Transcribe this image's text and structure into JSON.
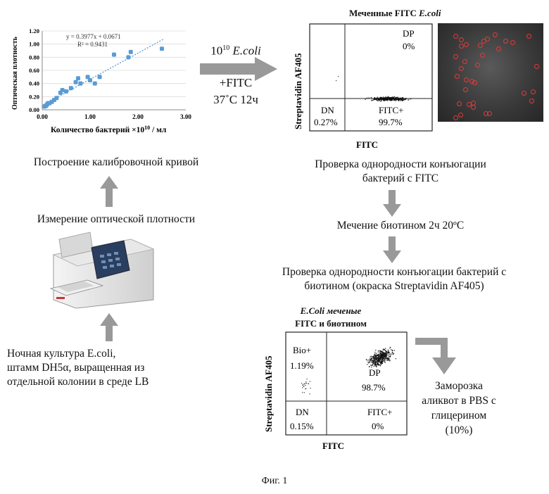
{
  "calibration": {
    "equation": "y = 0.3977x + 0.0671",
    "r2": "R² = 0.9431",
    "ylabel": "Оптическая плотность",
    "xlabel": "Количество бактерий ×10",
    "xlabel_exp": "10",
    "xlabel_unit": " / мл",
    "xticks": [
      "0.00",
      "1.00",
      "2.00",
      "3.00"
    ],
    "yticks": [
      "0.00",
      "0.20",
      "0.40",
      "0.60",
      "0.80",
      "1.00",
      "1.20"
    ]
  },
  "chart_data": {
    "type": "scatter",
    "xlim": [
      0,
      3
    ],
    "ylim": [
      0,
      1.2
    ],
    "trendline": {
      "slope": 0.3977,
      "intercept": 0.0671
    },
    "points": [
      [
        0.05,
        0.05
      ],
      [
        0.08,
        0.06
      ],
      [
        0.1,
        0.08
      ],
      [
        0.12,
        0.1
      ],
      [
        0.15,
        0.1
      ],
      [
        0.2,
        0.12
      ],
      [
        0.25,
        0.15
      ],
      [
        0.3,
        0.18
      ],
      [
        0.38,
        0.26
      ],
      [
        0.42,
        0.3
      ],
      [
        0.5,
        0.28
      ],
      [
        0.6,
        0.33
      ],
      [
        0.7,
        0.42
      ],
      [
        0.75,
        0.48
      ],
      [
        0.8,
        0.4
      ],
      [
        0.95,
        0.5
      ],
      [
        1.0,
        0.45
      ],
      [
        1.1,
        0.4
      ],
      [
        1.2,
        0.5
      ],
      [
        1.5,
        0.84
      ],
      [
        1.8,
        0.8
      ],
      [
        1.85,
        0.88
      ],
      [
        2.5,
        0.93
      ]
    ]
  },
  "arrow1": {
    "line1_base": "10",
    "line1_exp": "10",
    "line1_italic": " E.coli",
    "line2": "+FITC",
    "line3": "37˚C 12ч"
  },
  "flow1": {
    "title_plain": "Меченные FITC ",
    "title_italic": "E.coli",
    "ylabel": "Streptavidin AF405",
    "xlabel": "FITC",
    "dp_label": "DP",
    "dp_value": "0%",
    "dn_label": "DN",
    "dn_value": "0.27%",
    "fitc_label": "FITC+",
    "fitc_value": "99.7%"
  },
  "flow2": {
    "title_line1": "E.Coli меченые",
    "title_line2": "FITC и биотином",
    "ylabel": "Streptavidin AF405",
    "xlabel": "FITC",
    "bio_label": "Bio+",
    "bio_value": "1.19%",
    "dp_label": "DP",
    "dp_value": "98.7%",
    "dn_label": "DN",
    "dn_value": "0.15%",
    "fitc_label": "FITC+",
    "fitc_value": "0%"
  },
  "steps": {
    "calibration_curve": "Построение калибровочной кривой",
    "od_measurement": "Измерение оптической плотности",
    "culture": [
      "Ночная культура E.coli,",
      "штамм DH5α, выращенная из",
      "отдельной колонии в среде LB"
    ],
    "check_fitc": [
      "Проверка однородности конъюгации",
      "бактерий с FITC"
    ],
    "biotin_label": "Мечение биотином 2ч 20ºС",
    "check_biotin": [
      "Проверка однородности конъюгации бактерий с",
      "биотином (окраска Streptavidin AF405)"
    ],
    "freeze": [
      "Заморозка",
      "аликвот в PBS с",
      "глицерином",
      "(10%)"
    ]
  },
  "colors": {
    "points": "#5b9bd5",
    "trendline": "#5b9bd5",
    "arrow": "#999999",
    "cell": "#e23a3a"
  },
  "figure_caption": "Фиг. 1"
}
